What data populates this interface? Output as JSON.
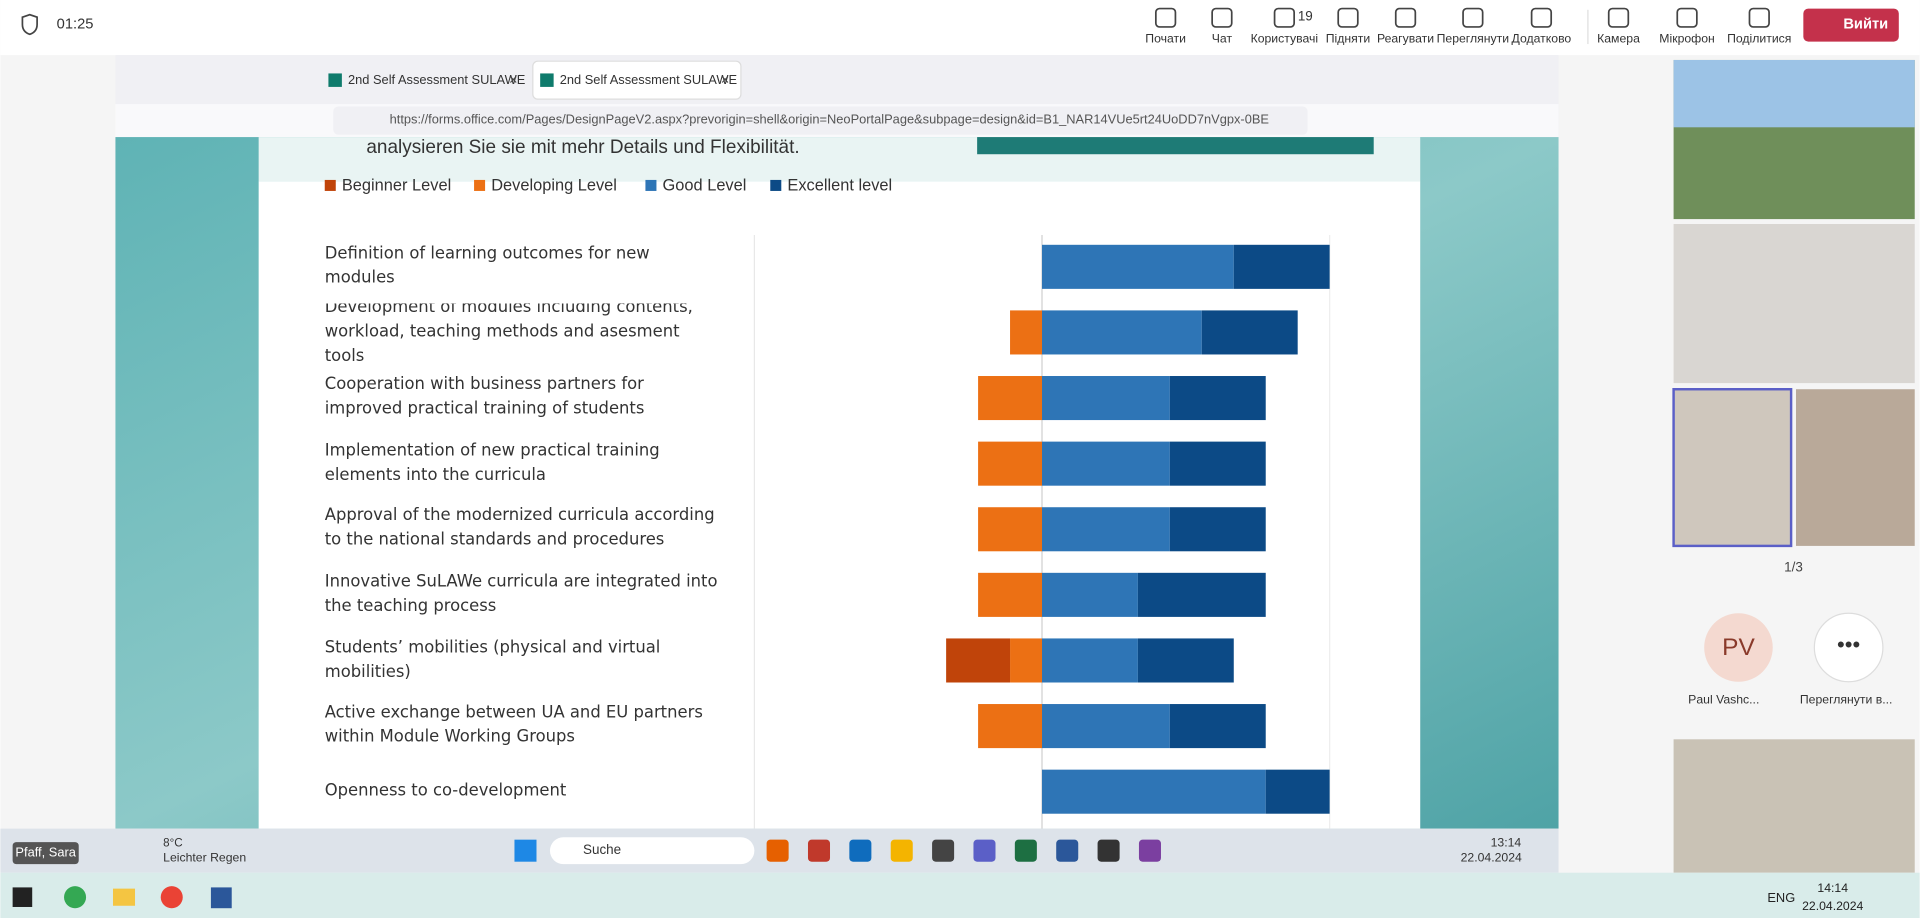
{
  "top_bar": {
    "timer": "01:25",
    "buttons": [
      {
        "label": "Почати"
      },
      {
        "label": "Чат"
      },
      {
        "label": "Користувачі",
        "count": 19
      },
      {
        "label": "Підняти"
      },
      {
        "label": "Реагувати"
      },
      {
        "label": "Переглянути"
      },
      {
        "label": "Додатково"
      },
      {
        "label": "Камера"
      },
      {
        "label": "Мікрофон"
      },
      {
        "label": "Поділитися"
      }
    ],
    "leave": "Вийти"
  },
  "browser": {
    "tabs": [
      "2nd Self Assessment SULAWE",
      "2nd Self Assessment SULAWE"
    ],
    "url": "https://forms.office.com/Pages/DesignPageV2.aspx?prevorigin=shell&origin=NeoPortalPage&subpage=design&id=B1_NAR14VUe5rt24UoDD7nVgpx-0BE"
  },
  "slide": {
    "subtitle": "analysieren Sie sie mit mehr Details und Flexibilität."
  },
  "chart_data": {
    "type": "diverging_bar",
    "categories": [
      "Definition of learning outcomes for new modules",
      "Development of modules including contents, workload, teaching methods and asesment tools",
      "Cooperation with business partners for improved practical training of students",
      "Implementation of new practical training elements into the curricula",
      "Approval of the modernized curricula according to the national standards and procedures",
      "Innovative SuLAWe curricula are integrated into the teaching process",
      "Students’ mobilities (physical and virtual mobilities)",
      "Active exchange between UA and EU partners within Module Working Groups",
      "Openness to co-development"
    ],
    "series": [
      {
        "name": "Beginner Level",
        "color": "#c0440a",
        "values": [
          0,
          0,
          0,
          0,
          0,
          0,
          2,
          0,
          0
        ]
      },
      {
        "name": "Developing Level",
        "color": "#ec7014",
        "values": [
          0,
          1,
          2,
          2,
          2,
          2,
          1,
          2,
          0
        ]
      },
      {
        "name": "Good Level",
        "color": "#2e75b6",
        "values": [
          6,
          5,
          4,
          4,
          4,
          3,
          3,
          4,
          7
        ]
      },
      {
        "name": "Excellent level",
        "color": "#0c4a86",
        "values": [
          3,
          3,
          3,
          3,
          3,
          4,
          3,
          3,
          2
        ]
      }
    ],
    "xlim": [
      -9,
      9
    ]
  },
  "side_panel": {
    "pager": "1/3",
    "avatar": "PV",
    "participant": "Paul Vashc...",
    "more": "Переглянути в..."
  },
  "remote_taskbar": {
    "user": "Pfaff, Sara",
    "temperature": "8°C",
    "weather": "Leichter Regen",
    "search": "Suche",
    "time": "13:14",
    "date": "22.04.2024"
  },
  "os_taskbar": {
    "language": "ENG",
    "time": "14:14",
    "date": "22.04.2024"
  }
}
